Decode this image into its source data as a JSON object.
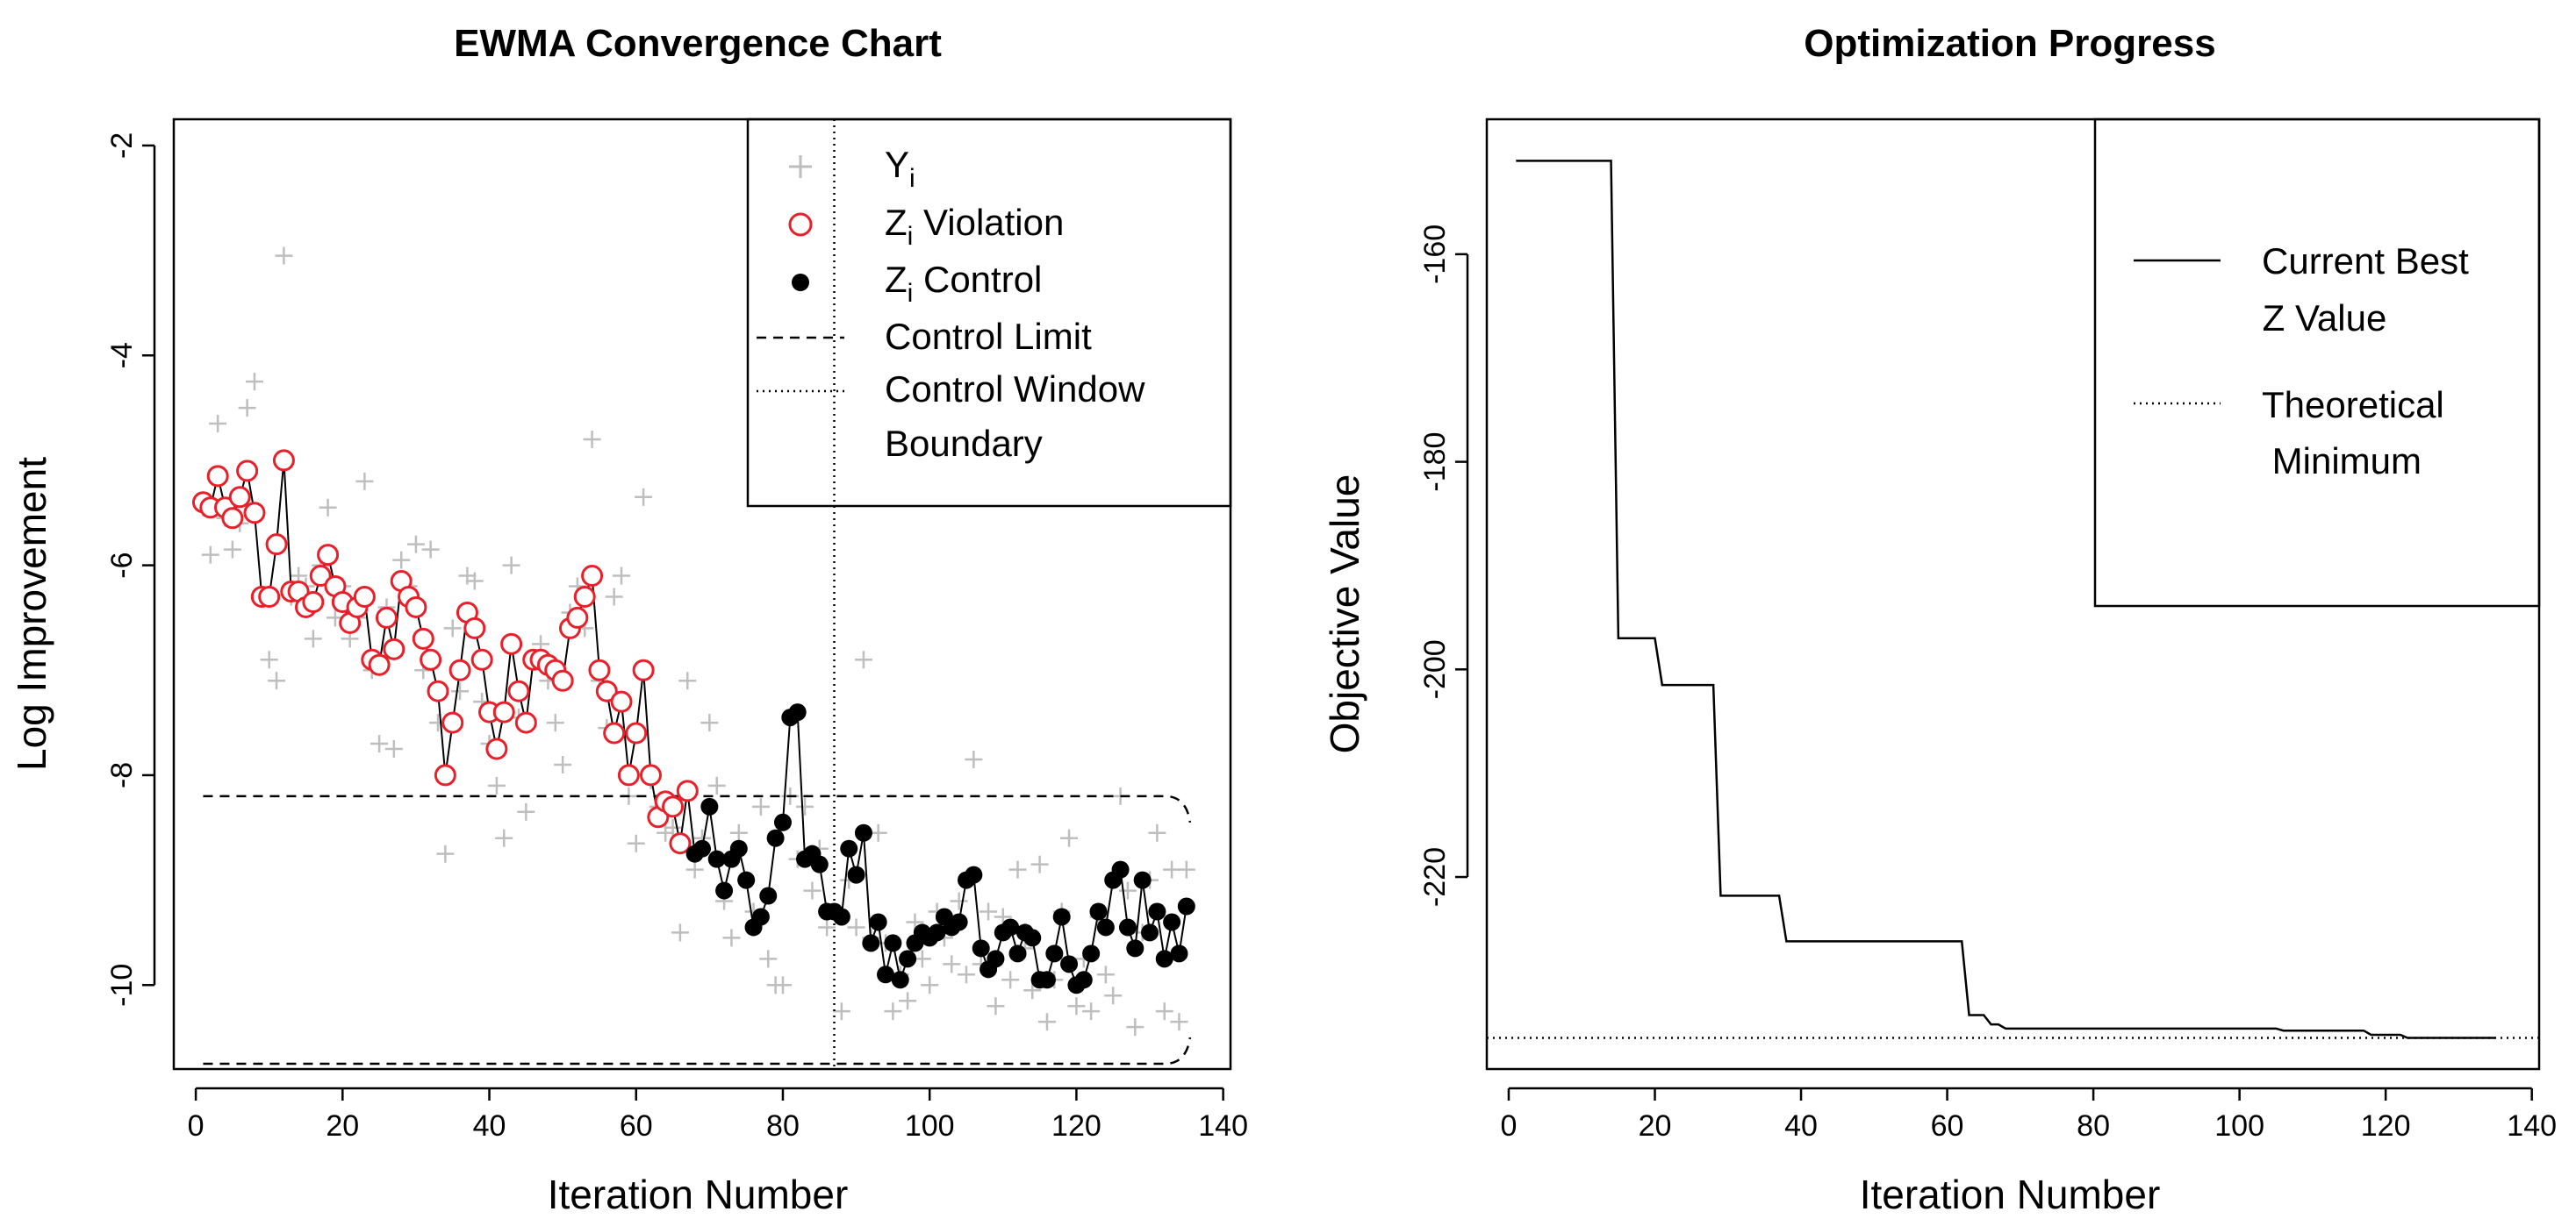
{
  "chart_data": [
    {
      "type": "scatter",
      "title": "EWMA Convergence Chart",
      "xlabel": "Iteration Number",
      "ylabel": "Log Improvement",
      "xlim": [
        -3,
        141
      ],
      "ylim": [
        -10.8,
        -1.75
      ],
      "x_ticks": [
        0,
        20,
        40,
        60,
        80,
        100,
        120,
        140
      ],
      "x_tick_labels": [
        "0",
        "20",
        "40",
        "60",
        "80",
        "100",
        "120",
        "140"
      ],
      "y_ticks": [
        -10,
        -8,
        -6,
        -4,
        -2
      ],
      "y_tick_labels": [
        "-10",
        "-8",
        "-6",
        "-4",
        "-2"
      ],
      "grid": false,
      "legend_position": "top-right",
      "colors": {
        "yi": "#bebebe",
        "violation": "#e8202a",
        "control": "#000000"
      },
      "legend": [
        {
          "main": "Y",
          "sub": "i",
          "rest": ""
        },
        {
          "main": "Z",
          "sub": "i",
          "rest": " Violation"
        },
        {
          "main": "Z",
          "sub": "i",
          "rest": " Control"
        },
        {
          "main": "Control Limit",
          "sub": "",
          "rest": ""
        },
        {
          "main": "Control Window",
          "sub": "",
          "rest": ""
        },
        {
          "main": "Boundary",
          "sub": "",
          "rest": ""
        }
      ],
      "control_limit_upper": -8.2,
      "control_limit_lower": -10.75,
      "control_limit_x_range": [
        1,
        135
      ],
      "control_window_boundary_x": 87,
      "violation_count": 67,
      "y_i": [
        [
          1,
          -5.45
        ],
        [
          2,
          -5.9
        ],
        [
          3,
          -4.65
        ],
        [
          4,
          -5.55
        ],
        [
          5,
          -5.85
        ],
        [
          6,
          -5.6
        ],
        [
          7,
          -4.5
        ],
        [
          8,
          -4.25
        ],
        [
          9,
          -6.3
        ],
        [
          10,
          -6.9
        ],
        [
          11,
          -7.1
        ],
        [
          12,
          -3.05
        ],
        [
          13,
          -6.3
        ],
        [
          14,
          -6.1
        ],
        [
          15,
          -6.2
        ],
        [
          16,
          -6.7
        ],
        [
          17,
          -6.0
        ],
        [
          18,
          -5.45
        ],
        [
          19,
          -6.5
        ],
        [
          20,
          -6.2
        ],
        [
          21,
          -6.7
        ],
        [
          22,
          -6.5
        ],
        [
          23,
          -5.2
        ],
        [
          24,
          -7.0
        ],
        [
          25,
          -7.7
        ],
        [
          26,
          -6.4
        ],
        [
          27,
          -7.75
        ],
        [
          28,
          -5.95
        ],
        [
          29,
          -6.2
        ],
        [
          30,
          -5.8
        ],
        [
          31,
          -7.0
        ],
        [
          32,
          -5.85
        ],
        [
          33,
          -7.5
        ],
        [
          34,
          -8.75
        ],
        [
          35,
          -6.6
        ],
        [
          36,
          -7.2
        ],
        [
          37,
          -6.1
        ],
        [
          38,
          -6.15
        ],
        [
          39,
          -7.3
        ],
        [
          40,
          -7.7
        ],
        [
          41,
          -8.1
        ],
        [
          42,
          -8.6
        ],
        [
          43,
          -6.0
        ],
        [
          44,
          -7.45
        ],
        [
          45,
          -8.35
        ],
        [
          46,
          -6.9
        ],
        [
          47,
          -6.75
        ],
        [
          48,
          -7.1
        ],
        [
          49,
          -7.5
        ],
        [
          50,
          -7.9
        ],
        [
          51,
          -6.45
        ],
        [
          52,
          -6.2
        ],
        [
          53,
          -6.6
        ],
        [
          54,
          -4.8
        ],
        [
          55,
          -7.1
        ],
        [
          56,
          -7.55
        ],
        [
          57,
          -6.3
        ],
        [
          58,
          -6.1
        ],
        [
          59,
          -8.2
        ],
        [
          60,
          -8.65
        ],
        [
          61,
          -5.35
        ],
        [
          62,
          -8.05
        ],
        [
          63,
          -8.3
        ],
        [
          64,
          -8.55
        ],
        [
          65,
          -8.5
        ],
        [
          66,
          -9.5
        ],
        [
          67,
          -7.1
        ],
        [
          68,
          -8.9
        ],
        [
          69,
          -8.6
        ],
        [
          70,
          -7.5
        ],
        [
          71,
          -8.1
        ],
        [
          72,
          -9.2
        ],
        [
          73,
          -9.55
        ],
        [
          74,
          -8.55
        ],
        [
          75,
          -9.0
        ],
        [
          76,
          -9.3
        ],
        [
          77,
          -8.3
        ],
        [
          78,
          -9.75
        ],
        [
          79,
          -10.0
        ],
        [
          80,
          -10.0
        ],
        [
          81,
          -8.2
        ],
        [
          82,
          -8.8
        ],
        [
          83,
          -8.3
        ],
        [
          84,
          -9.1
        ],
        [
          85,
          -8.7
        ],
        [
          86,
          -9.45
        ],
        [
          87,
          -9.3
        ],
        [
          88,
          -10.25
        ],
        [
          89,
          -9.0
        ],
        [
          90,
          -9.45
        ],
        [
          91,
          -6.9
        ],
        [
          92,
          -9.55
        ],
        [
          93,
          -8.55
        ],
        [
          94,
          -9.6
        ],
        [
          95,
          -10.25
        ],
        [
          96,
          -9.9
        ],
        [
          97,
          -10.15
        ],
        [
          98,
          -9.4
        ],
        [
          99,
          -9.75
        ],
        [
          100,
          -10.0
        ],
        [
          101,
          -9.3
        ],
        [
          102,
          -9.55
        ],
        [
          103,
          -9.8
        ],
        [
          104,
          -9.2
        ],
        [
          105,
          -9.9
        ],
        [
          106,
          -7.85
        ],
        [
          107,
          -9.8
        ],
        [
          108,
          -9.3
        ],
        [
          109,
          -10.2
        ],
        [
          110,
          -9.35
        ],
        [
          111,
          -9.95
        ],
        [
          112,
          -8.9
        ],
        [
          113,
          -9.65
        ],
        [
          114,
          -10.05
        ],
        [
          115,
          -8.85
        ],
        [
          116,
          -10.35
        ],
        [
          117,
          -9.95
        ],
        [
          118,
          -9.3
        ],
        [
          119,
          -8.6
        ],
        [
          120,
          -10.2
        ],
        [
          121,
          -9.75
        ],
        [
          122,
          -10.25
        ],
        [
          123,
          -9.35
        ],
        [
          124,
          -9.9
        ],
        [
          125,
          -10.1
        ],
        [
          126,
          -8.2
        ],
        [
          127,
          -9.1
        ],
        [
          128,
          -10.4
        ],
        [
          129,
          -9.5
        ],
        [
          130,
          -9.0
        ],
        [
          131,
          -8.55
        ],
        [
          132,
          -10.25
        ],
        [
          133,
          -8.9
        ],
        [
          134,
          -10.35
        ],
        [
          135,
          -8.9
        ]
      ],
      "z_i": [
        -5.4,
        -5.45,
        -5.15,
        -5.45,
        -5.55,
        -5.35,
        -5.1,
        -5.5,
        -6.3,
        -6.3,
        -5.8,
        -5.0,
        -6.25,
        -6.25,
        -6.4,
        -6.35,
        -6.1,
        -5.9,
        -6.2,
        -6.35,
        -6.55,
        -6.4,
        -6.3,
        -6.9,
        -6.95,
        -6.5,
        -6.8,
        -6.15,
        -6.3,
        -6.4,
        -6.7,
        -6.9,
        -7.2,
        -8.0,
        -7.5,
        -7.0,
        -6.45,
        -6.6,
        -6.9,
        -7.4,
        -7.75,
        -7.4,
        -6.75,
        -7.2,
        -7.5,
        -6.9,
        -6.9,
        -6.95,
        -7.0,
        -7.1,
        -6.6,
        -6.5,
        -6.3,
        -6.1,
        -7.0,
        -7.2,
        -7.6,
        -7.3,
        -8.0,
        -7.6,
        -7.0,
        -8.0,
        -8.4,
        -8.25,
        -8.3,
        -8.65,
        -8.15,
        -8.75,
        -8.7,
        -8.3,
        -8.8,
        -9.1,
        -8.8,
        -8.7,
        -9.0,
        -9.45,
        -9.35,
        -9.15,
        -8.6,
        -8.45,
        -7.45,
        -7.4,
        -8.8,
        -8.75,
        -8.85,
        -9.3,
        -9.3,
        -9.35,
        -8.7,
        -8.95,
        -8.55,
        -9.6,
        -9.4,
        -9.9,
        -9.6,
        -9.95,
        -9.75,
        -9.6,
        -9.5,
        -9.55,
        -9.5,
        -9.35,
        -9.45,
        -9.4,
        -9.0,
        -8.95,
        -9.65,
        -9.85,
        -9.75,
        -9.5,
        -9.45,
        -9.7,
        -9.5,
        -9.55,
        -9.95,
        -9.95,
        -9.7,
        -9.35,
        -9.8,
        -10.0,
        -9.95,
        -9.7,
        -9.3,
        -9.45,
        -9.0,
        -8.9,
        -9.45,
        -9.65,
        -9.0,
        -9.5,
        -9.3,
        -9.75,
        -9.4,
        -9.7,
        -9.25
      ]
    },
    {
      "type": "line",
      "title": "Optimization Progress",
      "xlabel": "Iteration Number",
      "ylabel": "Objective Value",
      "xlim": [
        -3,
        141
      ],
      "ylim": [
        -238.5,
        -147
      ],
      "x_ticks": [
        0,
        20,
        40,
        60,
        80,
        100,
        120,
        140
      ],
      "x_tick_labels": [
        "0",
        "20",
        "40",
        "60",
        "80",
        "100",
        "120",
        "140"
      ],
      "y_ticks": [
        -220,
        -200,
        -180,
        -160
      ],
      "y_tick_labels": [
        "-220",
        "-200",
        "-180",
        "-160"
      ],
      "grid": false,
      "legend_position": "top-right",
      "legend": [
        {
          "lines": [
            "Current Best",
            " Z Value"
          ]
        },
        {
          "lines": [
            "Theoretical",
            " Minimum"
          ]
        }
      ],
      "theoretical_minimum": -235.5,
      "theoretical_minimum_x_range": [
        -3,
        141
      ],
      "series": [
        {
          "name": "Current Best Z Value",
          "points": [
            [
              1,
              -151
            ],
            [
              14,
              -151
            ],
            [
              15,
              -197
            ],
            [
              20,
              -197
            ],
            [
              21,
              -201.5
            ],
            [
              28,
              -201.5
            ],
            [
              29,
              -221.8
            ],
            [
              37,
              -221.8
            ],
            [
              38,
              -226.2
            ],
            [
              62,
              -226.2
            ],
            [
              63,
              -233.3
            ],
            [
              65,
              -233.3
            ],
            [
              66,
              -234.2
            ],
            [
              67,
              -234.2
            ],
            [
              68,
              -234.6
            ],
            [
              105,
              -234.6
            ],
            [
              106,
              -234.8
            ],
            [
              117,
              -234.8
            ],
            [
              118,
              -235.2
            ],
            [
              122,
              -235.2
            ],
            [
              123,
              -235.5
            ],
            [
              135,
              -235.5
            ]
          ]
        }
      ]
    }
  ]
}
